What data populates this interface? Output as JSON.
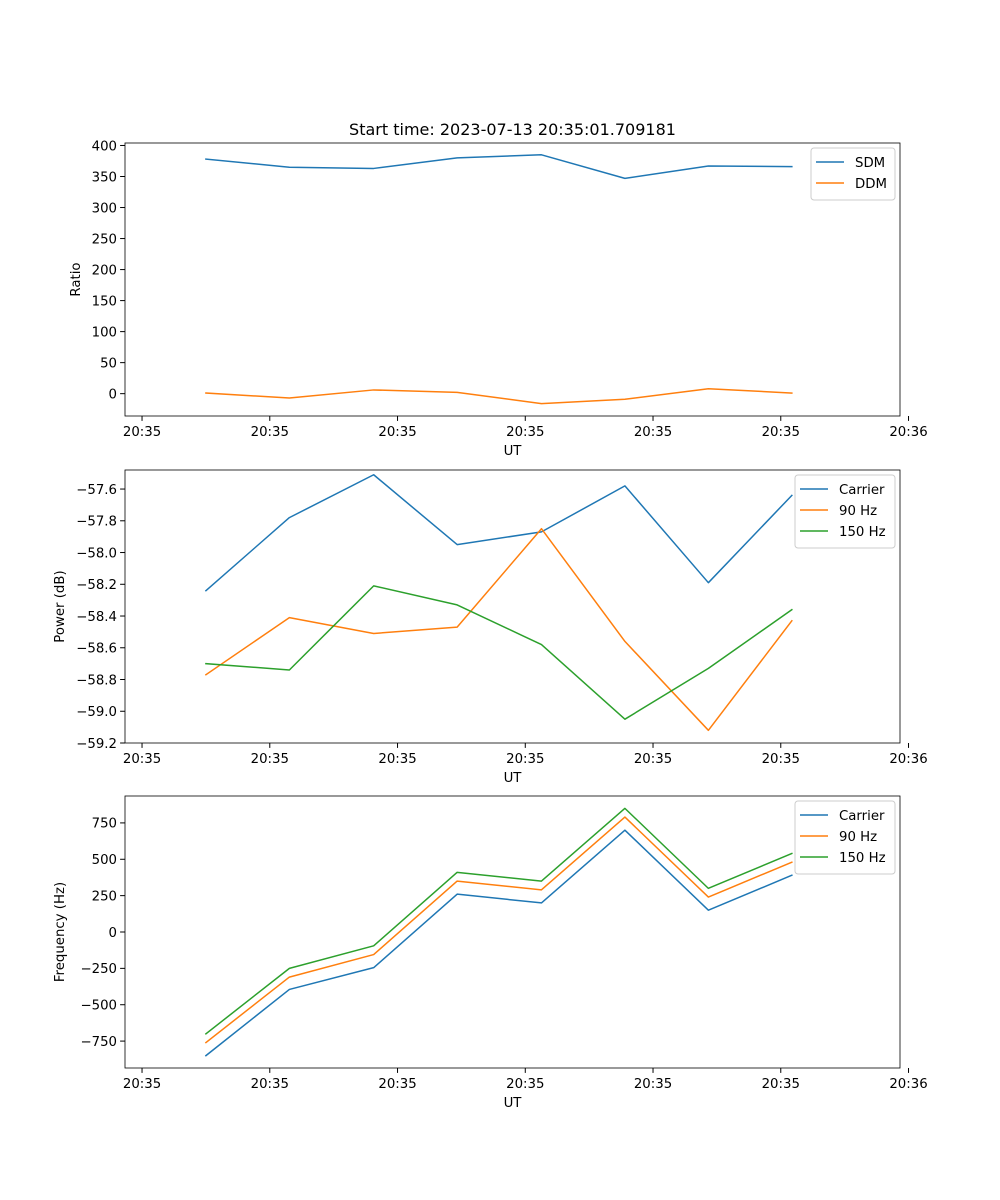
{
  "chart_data": [
    {
      "type": "line",
      "title": "Start time: 2023-07-13 20:35:01.709181",
      "xlabel": "UT",
      "ylabel": "Ratio",
      "xlim": [
        -0.4,
        8.7
      ],
      "xticks": [
        -0.2,
        1.3,
        2.8,
        4.3,
        5.8,
        7.3,
        8.8
      ],
      "xtick_labels": [
        "20:35",
        "20:35",
        "20:35",
        "20:35",
        "20:35",
        "20:35",
        "20:36"
      ],
      "ylim": [
        -36,
        404
      ],
      "yticks": [
        0,
        50,
        100,
        150,
        200,
        250,
        300,
        350,
        400
      ],
      "ytick_labels": [
        "0",
        "50",
        "100",
        "150",
        "200",
        "250",
        "300",
        "350",
        "400"
      ],
      "x": [
        0.55,
        1.53,
        2.52,
        3.5,
        4.49,
        5.47,
        6.45,
        7.43
      ],
      "legend_position": "top-right",
      "series": [
        {
          "name": "SDM",
          "color": "#1f77b4",
          "values": [
            378,
            365,
            363,
            380,
            385,
            347,
            367,
            366
          ]
        },
        {
          "name": "DDM",
          "color": "#ff7f0e",
          "values": [
            1,
            -7,
            6,
            2,
            -16,
            -9,
            8,
            1
          ]
        }
      ]
    },
    {
      "type": "line",
      "title": "",
      "xlabel": "UT",
      "ylabel": "Power (dB)",
      "xlim": [
        -0.4,
        8.7
      ],
      "xticks": [
        -0.2,
        1.3,
        2.8,
        4.3,
        5.8,
        7.3,
        8.8
      ],
      "xtick_labels": [
        "20:35",
        "20:35",
        "20:35",
        "20:35",
        "20:35",
        "20:35",
        "20:36"
      ],
      "ylim": [
        -59.2,
        -57.48
      ],
      "yticks": [
        -59.2,
        -59.0,
        -58.8,
        -58.6,
        -58.4,
        -58.2,
        -58.0,
        -57.8,
        -57.6
      ],
      "ytick_labels": [
        "−59.2",
        "−59.0",
        "−58.8",
        "−58.6",
        "−58.4",
        "−58.2",
        "−58.0",
        "−57.8",
        "−57.6"
      ],
      "x": [
        0.55,
        1.53,
        2.52,
        3.5,
        4.49,
        5.47,
        6.45,
        7.43
      ],
      "legend_position": "top-right",
      "series": [
        {
          "name": "Carrier",
          "color": "#1f77b4",
          "values": [
            -58.24,
            -57.78,
            -57.51,
            -57.95,
            -57.87,
            -57.58,
            -58.19,
            -57.64
          ]
        },
        {
          "name": "90 Hz",
          "color": "#ff7f0e",
          "values": [
            -58.77,
            -58.41,
            -58.51,
            -58.47,
            -57.85,
            -58.56,
            -59.12,
            -58.43
          ]
        },
        {
          "name": "150 Hz",
          "color": "#2ca02c",
          "values": [
            -58.7,
            -58.74,
            -58.21,
            -58.33,
            -58.58,
            -59.05,
            -58.73,
            -58.36
          ]
        }
      ]
    },
    {
      "type": "line",
      "title": "",
      "xlabel": "UT",
      "ylabel": "Frequency (Hz)",
      "xlim": [
        -0.4,
        8.7
      ],
      "xticks": [
        -0.2,
        1.3,
        2.8,
        4.3,
        5.8,
        7.3,
        8.8
      ],
      "xtick_labels": [
        "20:35",
        "20:35",
        "20:35",
        "20:35",
        "20:35",
        "20:35",
        "20:36"
      ],
      "ylim": [
        -935,
        935
      ],
      "yticks": [
        -750,
        -500,
        -250,
        0,
        250,
        500,
        750
      ],
      "ytick_labels": [
        "−750",
        "−500",
        "−250",
        "0",
        "250",
        "500",
        "750"
      ],
      "x": [
        0.55,
        1.53,
        2.52,
        3.5,
        4.49,
        5.47,
        6.45,
        7.43
      ],
      "legend_position": "top-right",
      "series": [
        {
          "name": "Carrier",
          "color": "#1f77b4",
          "values": [
            -850,
            -395,
            -245,
            260,
            200,
            700,
            150,
            390
          ]
        },
        {
          "name": "90 Hz",
          "color": "#ff7f0e",
          "values": [
            -760,
            -310,
            -155,
            350,
            290,
            790,
            240,
            480
          ]
        },
        {
          "name": "150 Hz",
          "color": "#2ca02c",
          "values": [
            -700,
            -250,
            -95,
            410,
            350,
            850,
            300,
            540
          ]
        }
      ]
    }
  ]
}
